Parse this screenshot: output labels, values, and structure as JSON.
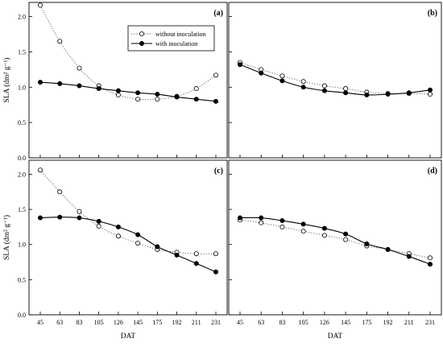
{
  "chart_data": [
    {
      "type": "line",
      "panel_label": "(a)",
      "xlabel": "",
      "ylabel": "SLA (dm² g⁻¹)",
      "ylim": [
        0,
        2.2
      ],
      "yticks": [
        "0.0",
        "0.5",
        "1.0",
        "1.5",
        "2.0"
      ],
      "x": [
        45,
        63,
        83,
        105,
        126,
        145,
        175,
        192,
        211,
        231
      ],
      "x_tick_labels": [],
      "series": [
        {
          "name": "without inoculation",
          "marker": "open-circle",
          "line": "dotted",
          "values": [
            2.16,
            1.65,
            1.27,
            1.02,
            0.89,
            0.83,
            0.83,
            0.87,
            0.98,
            1.17
          ]
        },
        {
          "name": "with inoculation",
          "marker": "filled-circle",
          "line": "solid",
          "values": [
            1.07,
            1.05,
            1.02,
            0.98,
            0.95,
            0.92,
            0.9,
            0.86,
            0.83,
            0.8
          ]
        }
      ],
      "legend": "top-right"
    },
    {
      "type": "line",
      "panel_label": "(b)",
      "xlabel": "",
      "ylabel": "",
      "ylim": [
        0,
        2.2
      ],
      "yticks": [],
      "x": [
        45,
        63,
        83,
        105,
        126,
        145,
        175,
        192,
        211,
        231
      ],
      "x_tick_labels": [],
      "series": [
        {
          "marker": "open-circle",
          "line": "dotted",
          "values": [
            1.35,
            1.25,
            1.16,
            1.08,
            1.02,
            0.98,
            0.93,
            0.91,
            0.91,
            0.9
          ]
        },
        {
          "marker": "filled-circle",
          "line": "solid",
          "values": [
            1.32,
            1.2,
            1.09,
            1.0,
            0.95,
            0.92,
            0.89,
            0.9,
            0.92,
            0.96
          ]
        }
      ]
    },
    {
      "type": "line",
      "panel_label": "(c)",
      "xlabel": "DAT",
      "ylabel": "SLA (dm² g⁻¹)",
      "ylim": [
        0,
        2.2
      ],
      "yticks": [
        "0.0",
        "0.5",
        "1.0",
        "1.5",
        "2.0"
      ],
      "x": [
        45,
        63,
        83,
        105,
        126,
        145,
        175,
        192,
        211,
        231
      ],
      "x_tick_labels": [
        "45",
        "63",
        "83",
        "105",
        "126",
        "145",
        "175",
        "192",
        "211",
        "231"
      ],
      "series": [
        {
          "marker": "open-circle",
          "line": "dotted",
          "values": [
            2.06,
            1.75,
            1.47,
            1.26,
            1.12,
            1.02,
            0.93,
            0.89,
            0.87,
            0.87
          ]
        },
        {
          "marker": "filled-circle",
          "line": "solid",
          "values": [
            1.38,
            1.39,
            1.38,
            1.33,
            1.25,
            1.14,
            0.97,
            0.85,
            0.73,
            0.61
          ]
        }
      ]
    },
    {
      "type": "line",
      "panel_label": "(d)",
      "xlabel": "DAT",
      "ylabel": "",
      "ylim": [
        0,
        2.2
      ],
      "yticks": [],
      "x": [
        45,
        63,
        83,
        105,
        126,
        145,
        175,
        192,
        211,
        231
      ],
      "x_tick_labels": [
        "45",
        "63",
        "83",
        "105",
        "126",
        "145",
        "175",
        "192",
        "211",
        "231"
      ],
      "series": [
        {
          "marker": "open-circle",
          "line": "dotted",
          "values": [
            1.35,
            1.31,
            1.25,
            1.19,
            1.13,
            1.07,
            0.98,
            0.93,
            0.87,
            0.81
          ]
        },
        {
          "marker": "filled-circle",
          "line": "solid",
          "values": [
            1.38,
            1.38,
            1.34,
            1.29,
            1.23,
            1.15,
            1.01,
            0.93,
            0.83,
            0.72
          ]
        }
      ]
    }
  ]
}
